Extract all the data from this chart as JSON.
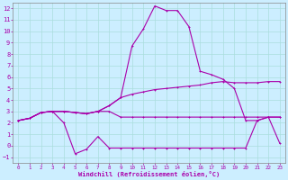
{
  "x": [
    0,
    1,
    2,
    3,
    4,
    5,
    6,
    7,
    8,
    9,
    10,
    11,
    12,
    13,
    14,
    15,
    16,
    17,
    18,
    19,
    20,
    21,
    22,
    23
  ],
  "line_spike": [
    2.2,
    2.4,
    2.9,
    3.0,
    3.0,
    2.9,
    2.8,
    3.0,
    3.5,
    4.2,
    8.7,
    10.2,
    12.2,
    11.8,
    11.8,
    10.4,
    6.5,
    6.2,
    5.8,
    5.0,
    2.2,
    2.2,
    2.5,
    2.5
  ],
  "line_slope": [
    2.2,
    2.4,
    2.9,
    3.0,
    3.0,
    2.9,
    2.8,
    3.0,
    3.5,
    4.2,
    4.5,
    4.7,
    4.9,
    5.0,
    5.1,
    5.2,
    5.3,
    5.5,
    5.6,
    5.5,
    5.5,
    5.5,
    5.6,
    5.6
  ],
  "line_flat_high": [
    2.2,
    2.4,
    2.9,
    3.0,
    3.0,
    2.9,
    2.8,
    3.0,
    3.0,
    2.5,
    2.5,
    2.5,
    2.5,
    2.5,
    2.5,
    2.5,
    2.5,
    2.5,
    2.5,
    2.5,
    2.5,
    2.5,
    2.5,
    2.5
  ],
  "line_wavy": [
    2.2,
    2.4,
    2.9,
    3.0,
    2.0,
    -0.7,
    -0.3,
    0.8,
    -0.2,
    -0.2,
    -0.2,
    -0.2,
    -0.2,
    -0.2,
    -0.2,
    -0.2,
    -0.2,
    -0.2,
    -0.2,
    -0.2,
    -0.2,
    2.2,
    2.5,
    0.2
  ],
  "bg_color": "#cceeff",
  "line_color": "#aa00aa",
  "grid_color": "#aadddd",
  "xlabel": "Windchill (Refroidissement éolien,°C)",
  "ylim": [
    -1.5,
    12.5
  ],
  "xlim": [
    -0.5,
    23.5
  ],
  "yticks": [
    -1,
    0,
    1,
    2,
    3,
    4,
    5,
    6,
    7,
    8,
    9,
    10,
    11,
    12
  ],
  "xticks": [
    0,
    1,
    2,
    3,
    4,
    5,
    6,
    7,
    8,
    9,
    10,
    11,
    12,
    13,
    14,
    15,
    16,
    17,
    18,
    19,
    20,
    21,
    22,
    23
  ]
}
